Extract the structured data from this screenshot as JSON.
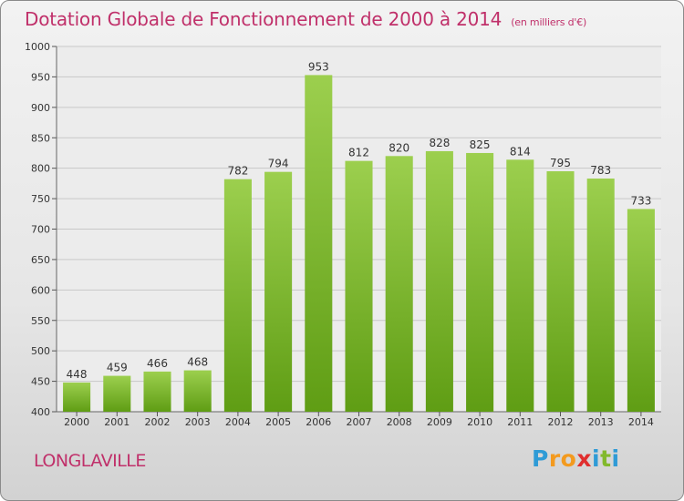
{
  "title": "Dotation Globale de Fonctionnement de 2000 à 2014",
  "subtitle": "(en milliers d'€)",
  "city": "LONGLAVILLE",
  "logo": {
    "text": "Proxiti",
    "colors": [
      "#2f9bd6",
      "#f39a1e",
      "#e02e2e",
      "#82b92c"
    ]
  },
  "colors": {
    "title": "#c0306a",
    "bar_top": "#9ccf4e",
    "bar_bottom": "#5f9d14",
    "grid": "#c8c8c8"
  },
  "chart_data": {
    "type": "bar",
    "title": "Dotation Globale de Fonctionnement de 2000 à 2014",
    "subtitle": "(en milliers d'€)",
    "xlabel": "",
    "ylabel": "",
    "ylim": [
      400,
      1000
    ],
    "yticks": [
      400,
      450,
      500,
      550,
      600,
      650,
      700,
      750,
      800,
      850,
      900,
      950,
      1000
    ],
    "grid": true,
    "categories": [
      "2000",
      "2001",
      "2002",
      "2003",
      "2004",
      "2005",
      "2006",
      "2007",
      "2008",
      "2009",
      "2010",
      "2011",
      "2012",
      "2013",
      "2014"
    ],
    "values": [
      448,
      459,
      466,
      468,
      782,
      794,
      953,
      812,
      820,
      828,
      825,
      814,
      795,
      783,
      733
    ]
  }
}
